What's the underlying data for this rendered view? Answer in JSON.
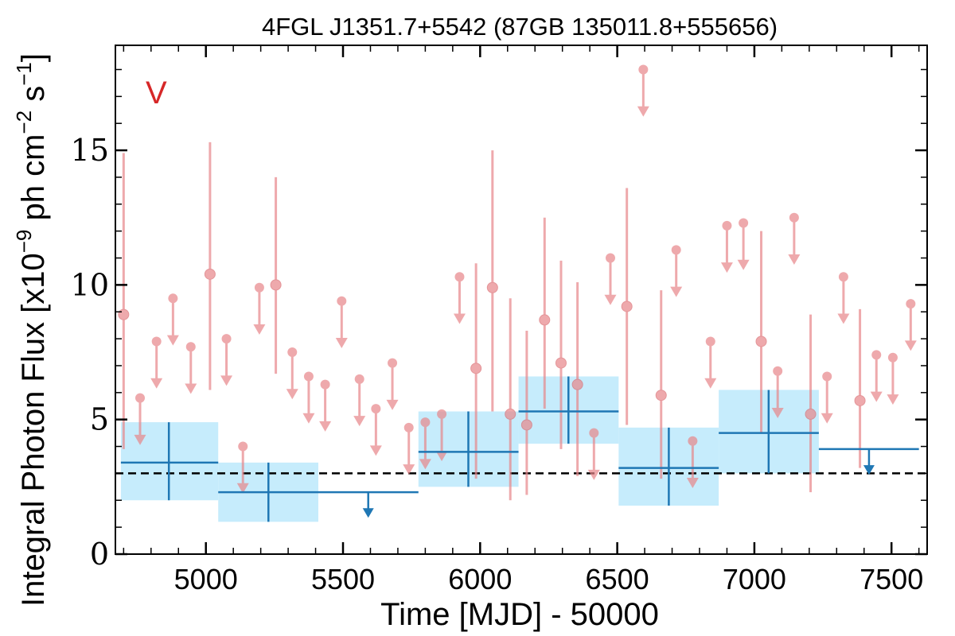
{
  "chart_data": {
    "type": "scatter",
    "title": "4FGL J1351.7+5542 (87GB 135011.8+555656)",
    "xlabel": "Time [MJD] - 50000",
    "ylabel": "Integral Photon Flux [x10",
    "ylabel_exp1": "−9",
    "ylabel_mid": " ph cm",
    "ylabel_exp2": "−2",
    "ylabel_mid2": " s",
    "ylabel_exp3": "−1",
    "ylabel_end": "]",
    "flag_label": "V",
    "xlim": [
      4670,
      7630
    ],
    "ylim": [
      0,
      18.9
    ],
    "xticks": [
      5000,
      5500,
      6000,
      6500,
      7000,
      7500
    ],
    "yticks": [
      0,
      5,
      10,
      15
    ],
    "grid": false,
    "baseline_flux": 3.0,
    "colors": {
      "monthly": "#e8868a",
      "yearly_line": "#1f77b4",
      "yearly_band": "#c6ecfc",
      "baseline": "#000000",
      "flag": "#d62728"
    },
    "series": [
      {
        "name": "",
        "kind": "monthly_detections",
        "points": [
          {
            "x": 4700,
            "y": 8.9,
            "lo": 3.9,
            "hi": 14.9
          },
          {
            "x": 5015,
            "y": 10.4,
            "lo": 6.1,
            "hi": 15.3
          },
          {
            "x": 5255,
            "y": 10.0,
            "lo": 6.7,
            "hi": 14.0
          },
          {
            "x": 5985,
            "y": 6.9,
            "lo": 2.8,
            "hi": 10.8
          },
          {
            "x": 6045,
            "y": 9.9,
            "lo": 5.3,
            "hi": 15.0
          },
          {
            "x": 6110,
            "y": 5.2,
            "lo": 2.0,
            "hi": 9.5
          },
          {
            "x": 6170,
            "y": 4.8,
            "lo": 2.2,
            "hi": 8.3
          },
          {
            "x": 6235,
            "y": 8.7,
            "lo": 5.4,
            "hi": 12.5
          },
          {
            "x": 6295,
            "y": 7.1,
            "lo": 3.9,
            "hi": 10.9
          },
          {
            "x": 6355,
            "y": 6.3,
            "lo": 2.9,
            "hi": 10.1
          },
          {
            "x": 6535,
            "y": 9.2,
            "lo": 4.8,
            "hi": 13.6
          },
          {
            "x": 6660,
            "y": 5.9,
            "lo": 2.8,
            "hi": 9.8
          },
          {
            "x": 7025,
            "y": 7.9,
            "lo": 4.5,
            "hi": 12.0
          },
          {
            "x": 7205,
            "y": 5.2,
            "lo": 2.3,
            "hi": 8.9
          },
          {
            "x": 7385,
            "y": 5.7,
            "lo": 3.2,
            "hi": 9.1
          }
        ]
      },
      {
        "name": "",
        "kind": "monthly_upper_limits",
        "points": [
          {
            "x": 4760,
            "y": 5.8
          },
          {
            "x": 4820,
            "y": 7.9
          },
          {
            "x": 4880,
            "y": 9.5
          },
          {
            "x": 4945,
            "y": 7.7
          },
          {
            "x": 5075,
            "y": 8.0
          },
          {
            "x": 5135,
            "y": 4.0
          },
          {
            "x": 5195,
            "y": 9.9
          },
          {
            "x": 5315,
            "y": 7.5
          },
          {
            "x": 5375,
            "y": 6.6
          },
          {
            "x": 5435,
            "y": 6.3
          },
          {
            "x": 5495,
            "y": 9.4
          },
          {
            "x": 5560,
            "y": 6.5
          },
          {
            "x": 5620,
            "y": 5.4
          },
          {
            "x": 5680,
            "y": 7.1
          },
          {
            "x": 5740,
            "y": 4.7
          },
          {
            "x": 5800,
            "y": 4.9
          },
          {
            "x": 5860,
            "y": 5.2
          },
          {
            "x": 5925,
            "y": 10.3
          },
          {
            "x": 6415,
            "y": 4.5
          },
          {
            "x": 6475,
            "y": 11.0
          },
          {
            "x": 6595,
            "y": 18.0
          },
          {
            "x": 6715,
            "y": 11.3
          },
          {
            "x": 6775,
            "y": 4.2
          },
          {
            "x": 6840,
            "y": 7.9
          },
          {
            "x": 6900,
            "y": 12.2
          },
          {
            "x": 6960,
            "y": 12.3
          },
          {
            "x": 7085,
            "y": 6.8
          },
          {
            "x": 7145,
            "y": 12.5
          },
          {
            "x": 7265,
            "y": 6.6
          },
          {
            "x": 7325,
            "y": 10.3
          },
          {
            "x": 7445,
            "y": 7.4
          },
          {
            "x": 7505,
            "y": 7.3
          },
          {
            "x": 7570,
            "y": 9.3
          }
        ]
      },
      {
        "name": "",
        "kind": "yearly_detections",
        "points": [
          {
            "x": 4865,
            "xlo": 4690,
            "xhi": 5045,
            "y": 3.4,
            "lo": 2.0,
            "hi": 4.9
          },
          {
            "x": 5228,
            "xlo": 5045,
            "xhi": 5410,
            "y": 2.3,
            "lo": 1.2,
            "hi": 3.4
          },
          {
            "x": 5957,
            "xlo": 5775,
            "xhi": 6140,
            "y": 3.8,
            "lo": 2.5,
            "hi": 5.3
          },
          {
            "x": 6322,
            "xlo": 6140,
            "xhi": 6505,
            "y": 5.3,
            "lo": 4.1,
            "hi": 6.6
          },
          {
            "x": 6688,
            "xlo": 6505,
            "xhi": 6870,
            "y": 3.2,
            "lo": 1.8,
            "hi": 4.7
          },
          {
            "x": 7052,
            "xlo": 6870,
            "xhi": 7235,
            "y": 4.5,
            "lo": 3.0,
            "hi": 6.1
          }
        ]
      },
      {
        "name": "",
        "kind": "yearly_upper_limits",
        "points": [
          {
            "x": 5592,
            "xlo": 5410,
            "xhi": 5775,
            "y": 2.3
          },
          {
            "x": 7418,
            "xlo": 7235,
            "xhi": 7600,
            "y": 3.9
          }
        ]
      }
    ]
  }
}
